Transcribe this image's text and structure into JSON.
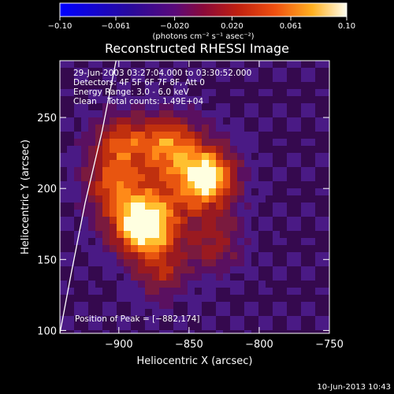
{
  "chart_data": {
    "type": "heatmap",
    "title": "Reconstructed RHESSI Image",
    "xlabel": "Heliocentric X (arcsec)",
    "ylabel": "Heliocentric Y (arcsec)",
    "xlim": [
      -942,
      -750
    ],
    "ylim": [
      98,
      290
    ],
    "xticks": [
      -900,
      -850,
      -800,
      -750
    ],
    "yticks": [
      100,
      150,
      200,
      250
    ],
    "xtick_labels": [
      "−900",
      "−850",
      "−800",
      "−750"
    ],
    "ytick_labels": [
      "100",
      "150",
      "200",
      "250"
    ],
    "colorbar": {
      "range": [
        -0.1,
        0.1
      ],
      "ticks": [
        -0.1,
        -0.061,
        -0.02,
        0.02,
        0.061,
        0.1
      ],
      "tick_labels": [
        "−0.10",
        "−0.061",
        "−0.020",
        "0.020",
        "0.061",
        "0.10"
      ],
      "unit_label": "(photons cm⁻² s⁻¹ asec⁻²)",
      "colormap": [
        "#0000ff",
        "#1a0a6e",
        "#35094e",
        "#4a1a85",
        "#7a1a3e",
        "#b02a10",
        "#e85510",
        "#ffb020",
        "#ffffe8"
      ]
    },
    "sources": [
      {
        "x": -882,
        "y": 174,
        "peak": 0.1
      },
      {
        "x": -838,
        "y": 208,
        "peak": 0.085
      },
      {
        "x": -865,
        "y": 232,
        "peak": 0.05
      },
      {
        "x": -900,
        "y": 232,
        "peak": 0.045
      },
      {
        "x": -905,
        "y": 200,
        "peak": 0.04
      },
      {
        "x": -870,
        "y": 140,
        "peak": 0.035
      },
      {
        "x": -830,
        "y": 160,
        "peak": 0.03
      }
    ],
    "limb_curve": [
      [
        -942,
        98
      ],
      [
        -934,
        140
      ],
      [
        -924,
        190
      ],
      [
        -912,
        240
      ],
      [
        -902,
        290
      ]
    ],
    "peak_position": [
      -882,
      174
    ],
    "annotations": [
      "29-Jun-2003 03:27:04.000 to 03:30:52.000",
      "Detectors: 4F 5F 6F 7F 8F, Att 0",
      "Energy Range: 3.0 - 6.0 keV",
      "Clean    Total counts: 1.49E+04",
      "Position of Peak = [−882,174]"
    ]
  },
  "footer": {
    "date": "10-Jun-2013 10:43"
  }
}
